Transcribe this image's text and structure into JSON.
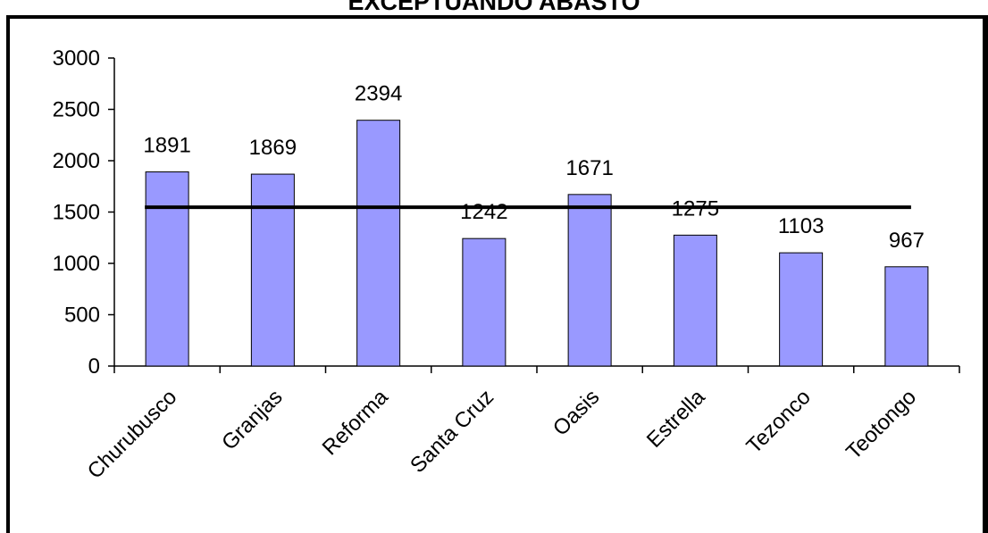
{
  "chart_data": {
    "type": "bar",
    "title": "EXCEPTUANDO ABASTO",
    "categories": [
      "Churubusco",
      "Granjas",
      "Reforma",
      "Santa Cruz",
      "Oasis",
      "Estrella",
      "Tezonco",
      "Teotongo"
    ],
    "values": [
      1891,
      1869,
      2394,
      1242,
      1671,
      1275,
      1103,
      967
    ],
    "data_labels": [
      "1891",
      "1869",
      "2394",
      "1242",
      "1671",
      "1275",
      "1103",
      "967"
    ],
    "ylim": [
      0,
      3000
    ],
    "yticks": [
      0,
      500,
      1000,
      1500,
      2000,
      2500,
      3000
    ],
    "ytick_labels": [
      "0",
      "500",
      "1000",
      "1500",
      "2000",
      "2500",
      "3000"
    ],
    "xlabel": "",
    "ylabel": "",
    "grid": false,
    "legend": "none",
    "reference_line": {
      "value": 1547
    },
    "colors": {
      "bar_fill": "#9999ff",
      "bar_stroke": "#000000",
      "reference_line": "#000000",
      "axis": "#000000",
      "frame": "#000000"
    }
  }
}
